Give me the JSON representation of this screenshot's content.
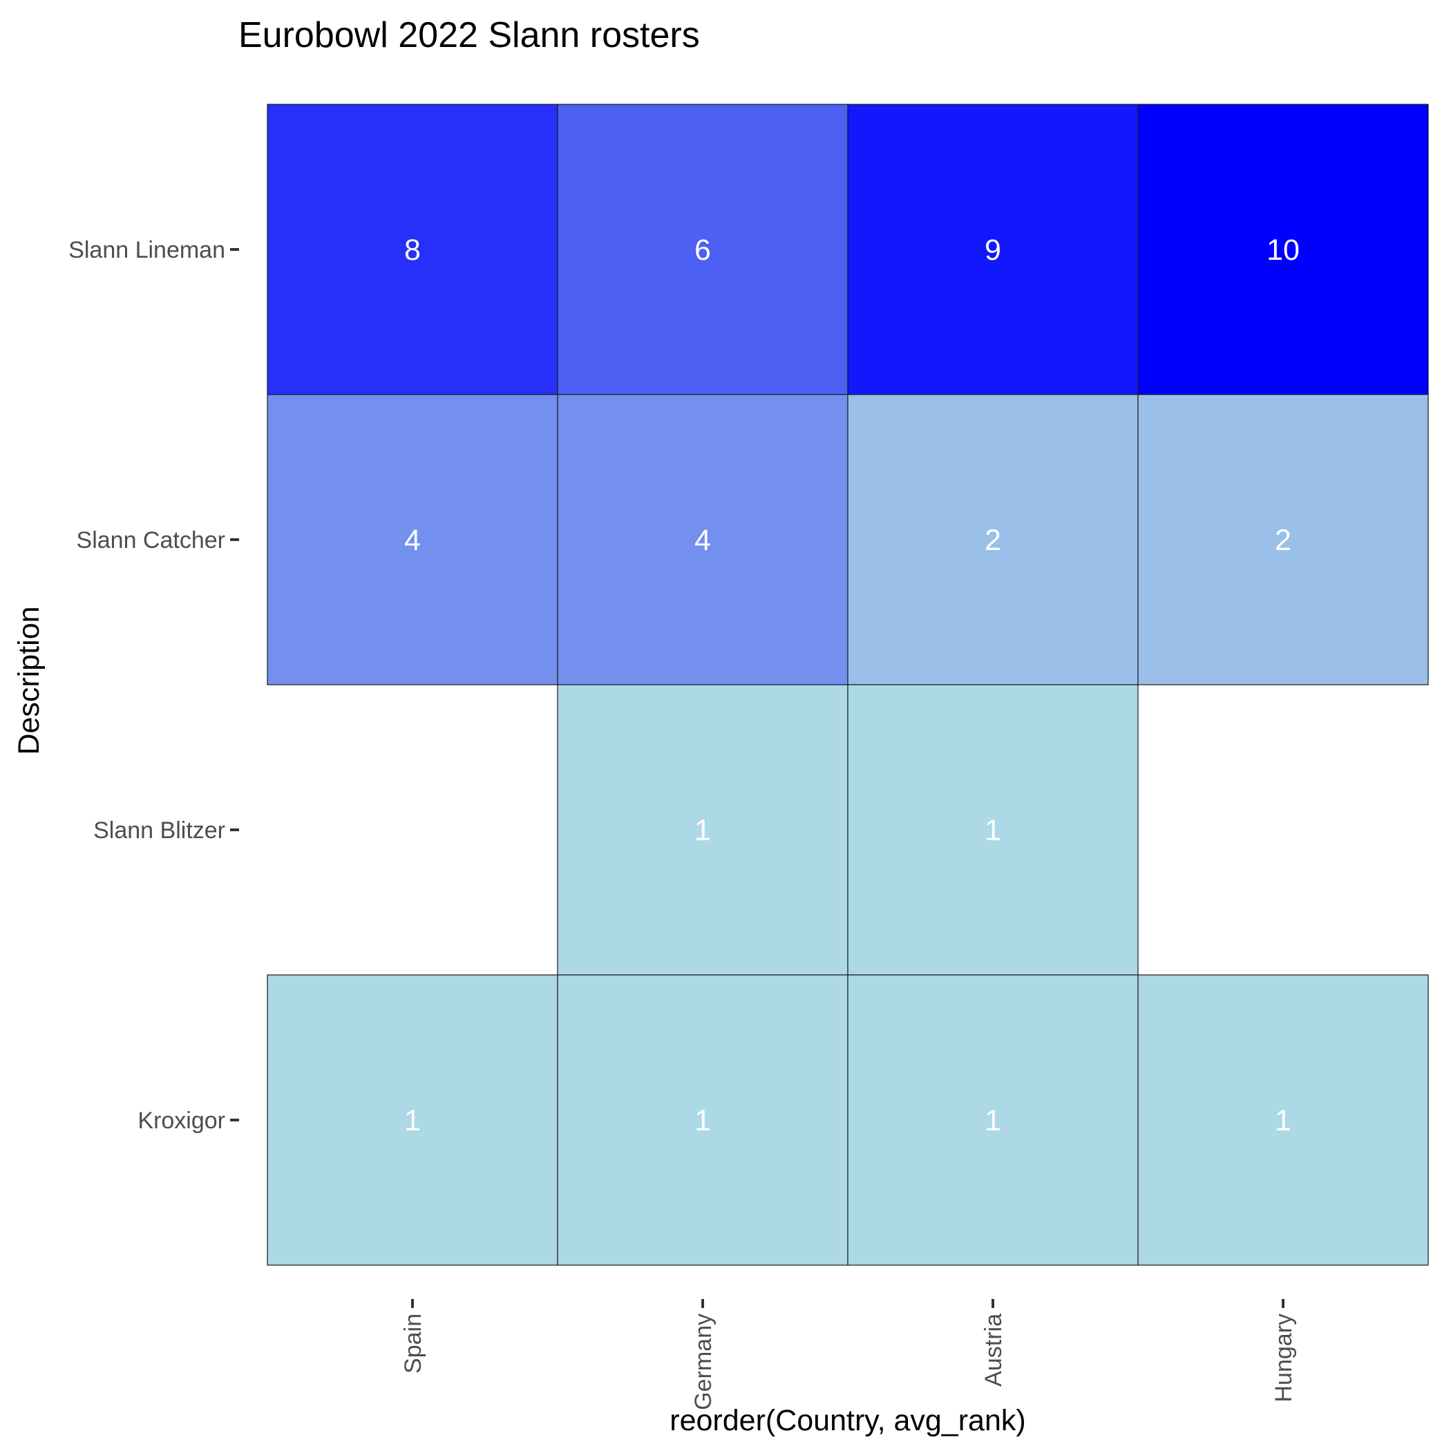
{
  "chart_data": {
    "type": "heatmap",
    "title": "Eurobowl 2022 Slann rosters",
    "xlabel": "reorder(Country, avg_rank)",
    "ylabel": "Description",
    "x_categories": [
      "Spain",
      "Germany",
      "Austria",
      "Hungary"
    ],
    "y_categories": [
      "Slann Lineman",
      "Slann Catcher",
      "Slann Blitzer",
      "Kroxigor"
    ],
    "values": [
      [
        8,
        6,
        9,
        10
      ],
      [
        4,
        4,
        2,
        2
      ],
      [
        null,
        1,
        1,
        null
      ],
      [
        1,
        1,
        1,
        1
      ]
    ],
    "color_scale": {
      "low": "#add8e6",
      "high": "#0000ff",
      "min": 1,
      "max": 10
    },
    "label_color": "#ffffff",
    "tile_border_color": "#1a1a1a",
    "background": "#ffffff",
    "grid": false,
    "legend": "none"
  }
}
